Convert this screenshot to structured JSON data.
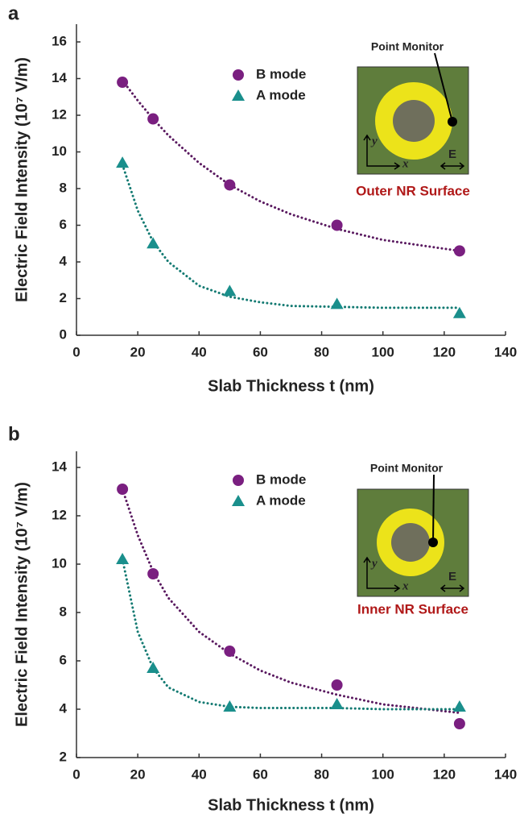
{
  "chart_data": [
    {
      "type": "scatter",
      "panel_label": "a",
      "xlabel": "Slab Thickness t (nm)",
      "ylabel": "Electric Field Intensity (10⁷ V/m)",
      "x": [
        15,
        25,
        50,
        85,
        125
      ],
      "series": [
        {
          "name": "B mode",
          "color": "#7a1f80",
          "marker": "circle",
          "values": [
            13.8,
            11.8,
            8.2,
            6.0,
            4.6
          ]
        },
        {
          "name": "A mode",
          "color": "#1a8f8c",
          "marker": "triangle",
          "values": [
            9.4,
            5.0,
            2.4,
            1.7,
            1.2
          ]
        }
      ],
      "fits": [
        {
          "color": "#5a1a60",
          "x": [
            15,
            20,
            25,
            30,
            40,
            50,
            60,
            70,
            85,
            100,
            125
          ],
          "values": [
            13.9,
            12.8,
            11.8,
            10.9,
            9.4,
            8.2,
            7.3,
            6.6,
            5.8,
            5.2,
            4.6
          ]
        },
        {
          "color": "#137a72",
          "x": [
            15,
            20,
            25,
            30,
            40,
            50,
            60,
            70,
            85,
            100,
            125
          ],
          "values": [
            9.3,
            6.8,
            5.1,
            4.0,
            2.7,
            2.1,
            1.8,
            1.6,
            1.55,
            1.5,
            1.5
          ]
        }
      ],
      "xlim": [
        0,
        140
      ],
      "xticks": [
        0,
        20,
        40,
        60,
        80,
        100,
        120,
        140
      ],
      "ylim": [
        0,
        16
      ],
      "yticks": [
        0,
        2,
        4,
        6,
        8,
        10,
        12,
        14,
        16
      ],
      "inset": {
        "point_label": "Point Monitor",
        "y_axis": "y",
        "x_axis": "x",
        "e_label": "E",
        "caption": "Outer NR Surface"
      }
    },
    {
      "type": "scatter",
      "panel_label": "b",
      "xlabel": "Slab Thickness t (nm)",
      "ylabel": "Electric Field Intensity (10⁷ V/m)",
      "x": [
        15,
        25,
        50,
        85,
        125
      ],
      "series": [
        {
          "name": "B mode",
          "color": "#7a1f80",
          "marker": "circle",
          "values": [
            13.1,
            9.6,
            6.4,
            5.0,
            3.4
          ]
        },
        {
          "name": "A mode",
          "color": "#1a8f8c",
          "marker": "triangle",
          "values": [
            10.2,
            5.7,
            4.1,
            4.2,
            4.1
          ]
        }
      ],
      "fits": [
        {
          "color": "#5a1a60",
          "x": [
            15,
            20,
            25,
            30,
            40,
            50,
            60,
            70,
            85,
            100,
            125
          ],
          "values": [
            13.1,
            11.2,
            9.7,
            8.6,
            7.2,
            6.3,
            5.6,
            5.1,
            4.6,
            4.2,
            3.85
          ]
        },
        {
          "color": "#137a72",
          "x": [
            15,
            20,
            25,
            30,
            40,
            50,
            60,
            70,
            85,
            100,
            125
          ],
          "values": [
            10.2,
            7.2,
            5.7,
            4.9,
            4.3,
            4.1,
            4.05,
            4.05,
            4.05,
            4.0,
            4.0
          ]
        }
      ],
      "xlim": [
        0,
        140
      ],
      "xticks": [
        0,
        20,
        40,
        60,
        80,
        100,
        120,
        140
      ],
      "ylim": [
        2,
        14
      ],
      "yticks": [
        2,
        4,
        6,
        8,
        10,
        12,
        14
      ],
      "inset": {
        "point_label": "Point Monitor",
        "y_axis": "y",
        "x_axis": "x",
        "e_label": "E",
        "caption": "Inner NR Surface"
      }
    }
  ]
}
